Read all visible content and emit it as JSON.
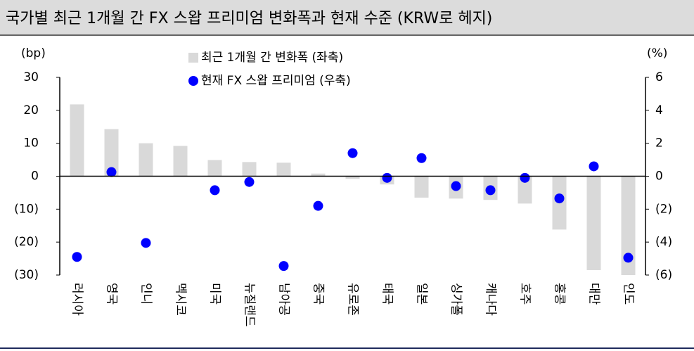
{
  "chart_data": {
    "type": "bar",
    "title": "국가별 최근 1개월 간 FX 스왑 프리미엄 변화폭과 현재 수준 (KRW로 헤지)",
    "y_label": "(bp)",
    "y2_label": "(%)",
    "categories": [
      "러시아",
      "영국",
      "인니",
      "멕시코",
      "미국",
      "뉴질랜드",
      "남아공",
      "중국",
      "유로존",
      "태국",
      "일본",
      "싱가폴",
      "캐나다",
      "호주",
      "홍콩",
      "대만",
      "인도"
    ],
    "series": [
      {
        "name": "최근 1개월 간 변화폭 (좌축)",
        "type": "bar",
        "color": "#d9d9d9",
        "values": [
          21.8,
          14.3,
          10,
          9.2,
          4.9,
          4.3,
          4.1,
          0.8,
          -0.8,
          -2.5,
          -6.5,
          -6.8,
          -7.2,
          -8.3,
          -16.2,
          -28.5,
          -30
        ]
      },
      {
        "name": "현재 FX 스왑 프리미엄 (우축)",
        "type": "scatter",
        "axis": "y2",
        "color": "#0000ff",
        "values": [
          -4.9,
          0.25,
          -4.05,
          null,
          -0.85,
          -0.35,
          -5.45,
          -1.8,
          1.4,
          -0.1,
          1.1,
          -0.6,
          -0.85,
          -0.1,
          -1.35,
          0.6,
          -4.95
        ]
      }
    ],
    "ylim": [
      -30,
      30
    ],
    "yticks": [
      30,
      20,
      10,
      0,
      {
        "value": -10,
        "label": "(10)"
      },
      {
        "value": -20,
        "label": "(20)"
      },
      {
        "value": -30,
        "label": "(30)"
      }
    ],
    "y2lim": [
      -6,
      6
    ],
    "y2ticks": [
      6,
      4,
      2,
      0,
      {
        "value": -2,
        "label": "(2)"
      },
      {
        "value": -4,
        "label": "(4)"
      },
      {
        "value": -6,
        "label": "(6)"
      }
    ]
  }
}
